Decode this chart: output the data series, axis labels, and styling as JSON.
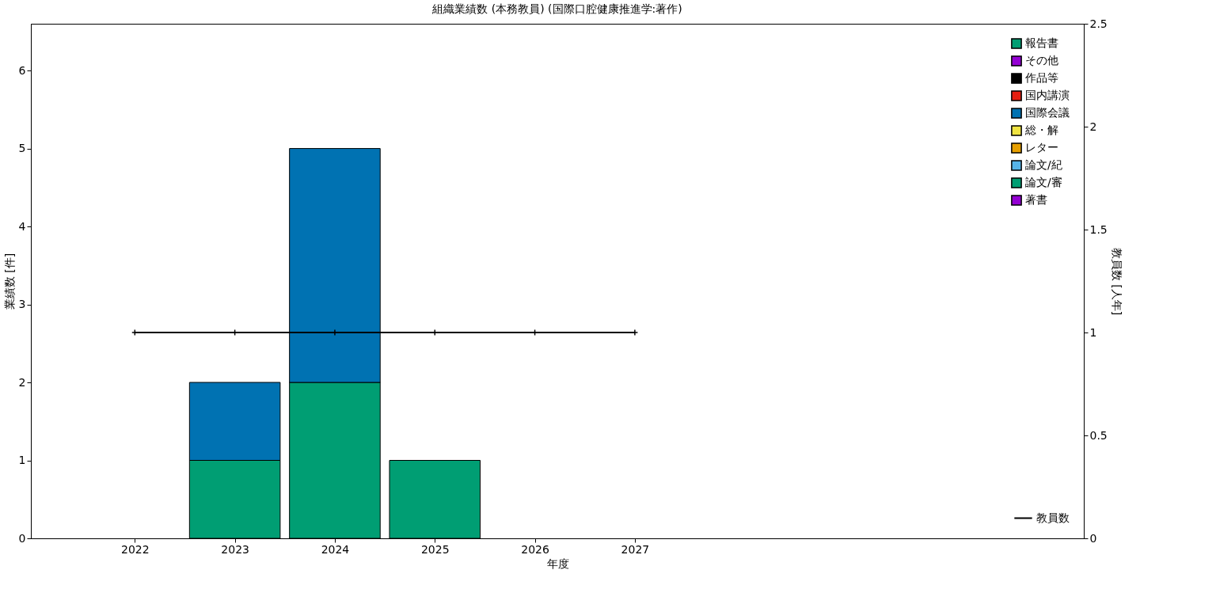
{
  "chart_data": {
    "type": "bar",
    "title": "組織業績数 (本務教員) (国際口腔健康推進学:著作)",
    "xlabel": "年度",
    "ylabel": "業績数 [件]",
    "y2label": "教員数 [人年]",
    "x": [
      2022,
      2023,
      2024,
      2025,
      2026,
      2027
    ],
    "stacked": true,
    "xlim": [
      2021,
      2031.45
    ],
    "xticks": [
      2022,
      2023,
      2024,
      2025,
      2026,
      2027
    ],
    "ylim": [
      0,
      6.6
    ],
    "yticks": [
      0,
      1,
      2,
      3,
      4,
      5,
      6
    ],
    "y2lim": [
      0,
      2.5
    ],
    "y2ticks": [
      0,
      0.5,
      1,
      1.5,
      2,
      2.5
    ],
    "grid": false,
    "legend": "top right",
    "series": [
      {
        "name": "著書",
        "color": "#9400d3",
        "values": [
          0,
          0,
          0,
          0,
          0,
          0
        ]
      },
      {
        "name": "論文/審",
        "color": "#009e73",
        "values": [
          0,
          1,
          2,
          1,
          0,
          0
        ]
      },
      {
        "name": "論文/紀",
        "color": "#56b4e9",
        "values": [
          0,
          0,
          0,
          0,
          0,
          0
        ]
      },
      {
        "name": "レター",
        "color": "#e69f00",
        "values": [
          0,
          0,
          0,
          0,
          0,
          0
        ]
      },
      {
        "name": "総・解",
        "color": "#f0e442",
        "values": [
          0,
          0,
          0,
          0,
          0,
          0
        ]
      },
      {
        "name": "国際会議",
        "color": "#0072b2",
        "values": [
          0,
          1,
          3,
          0,
          0,
          0
        ]
      },
      {
        "name": "国内講演",
        "color": "#e51e10",
        "values": [
          0,
          0,
          0,
          0,
          0,
          0
        ]
      },
      {
        "name": "作品等",
        "color": "#000000",
        "values": [
          0,
          0,
          0,
          0,
          0,
          0
        ]
      },
      {
        "name": "その他",
        "color": "#9400d3",
        "values": [
          0,
          0,
          0,
          0,
          0,
          0
        ]
      },
      {
        "name": "報告書",
        "color": "#009e73",
        "values": [
          0,
          0,
          0,
          0,
          0,
          0
        ]
      },
      {
        "name": "教員数",
        "color": "#000000",
        "type": "line",
        "axis": "y2",
        "marker": "cross",
        "line_style": "solid",
        "values": [
          1,
          1,
          1,
          1,
          1,
          1
        ]
      }
    ]
  }
}
